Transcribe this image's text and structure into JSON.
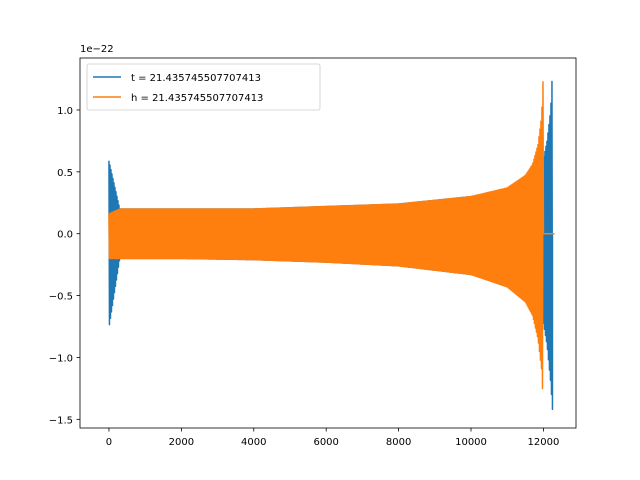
{
  "chart_data": {
    "type": "line",
    "title": "",
    "xlabel": "",
    "ylabel": "",
    "y_offset_label": "1e−22",
    "y_scale": 1e-22,
    "xlim": [
      -800,
      12900
    ],
    "ylim": [
      -1.57,
      1.42
    ],
    "x_ticks": [
      0,
      2000,
      4000,
      6000,
      8000,
      10000,
      12000
    ],
    "x_tick_labels": [
      "0",
      "2000",
      "4000",
      "6000",
      "8000",
      "10000",
      "12000"
    ],
    "y_ticks": [
      -1.5,
      -1.0,
      -0.5,
      0.0,
      0.5,
      1.0
    ],
    "y_tick_labels": [
      "−1.5",
      "−1.0",
      "−0.5",
      "0.0",
      "0.5",
      "1.0"
    ],
    "grid": false,
    "legend_position": "top-left",
    "series": [
      {
        "name": "t = 21.435745507707413",
        "color": "#1f77b4",
        "envelope": {
          "x": [
            0,
            300,
            2000,
            4000,
            6000,
            8000,
            10000,
            11000,
            11500,
            11800,
            12000,
            12100,
            12200,
            12250
          ],
          "upper": [
            0.59,
            0.2,
            0.2,
            0.2,
            0.22,
            0.24,
            0.3,
            0.36,
            0.44,
            0.52,
            0.6,
            0.75,
            1.0,
            1.32
          ],
          "lower": [
            -0.76,
            -0.2,
            -0.2,
            -0.21,
            -0.23,
            -0.26,
            -0.33,
            -0.42,
            -0.52,
            -0.62,
            -0.72,
            -0.9,
            -1.2,
            -1.42
          ]
        },
        "end_x": 12300
      },
      {
        "name": "h = 21.435745507707413",
        "color": "#ff7f0e",
        "envelope": {
          "x": [
            0,
            300,
            2000,
            4000,
            6000,
            8000,
            10000,
            11000,
            11500,
            11700,
            11850,
            11950,
            12000
          ],
          "upper": [
            0.16,
            0.2,
            0.2,
            0.2,
            0.22,
            0.24,
            0.3,
            0.37,
            0.47,
            0.56,
            0.72,
            0.95,
            1.32
          ],
          "lower": [
            -0.2,
            -0.2,
            -0.2,
            -0.21,
            -0.23,
            -0.26,
            -0.33,
            -0.43,
            -0.55,
            -0.66,
            -0.85,
            -1.1,
            -1.42
          ]
        },
        "end_x": 12300
      }
    ]
  }
}
